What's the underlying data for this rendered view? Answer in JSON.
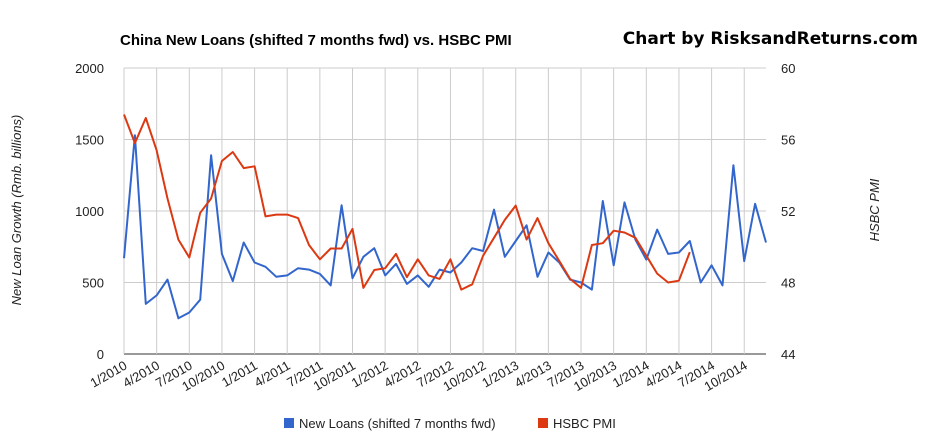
{
  "chart_data": {
    "type": "line",
    "title": "China New Loans (shifted 7 months fwd) vs. HSBC PMI",
    "watermark": "Chart by RisksandReturns.com",
    "ylabel": "New Loan Growth (Rmb. billions)",
    "y2label": "HSBC PMI",
    "ylim": [
      0,
      2000
    ],
    "y2lim": [
      44,
      60
    ],
    "yticks": [
      "0",
      "500",
      "1000",
      "1500",
      "2000"
    ],
    "y2ticks": [
      "44",
      "48",
      "52",
      "56",
      "60"
    ],
    "xlim": [
      "2010-01",
      "2014-12"
    ],
    "xticks": [
      "1/2010",
      "4/2010",
      "7/2010",
      "10/2010",
      "1/2011",
      "4/2011",
      "7/2011",
      "10/2011",
      "1/2012",
      "4/2012",
      "7/2012",
      "10/2012",
      "1/2013",
      "4/2013",
      "7/2013",
      "10/2013",
      "1/2014",
      "4/2014",
      "7/2014",
      "10/2014"
    ],
    "grid": true,
    "legend_position": "bottom",
    "series": [
      {
        "name": "New Loans (shifted 7 months fwd)",
        "color": "#3366cc",
        "axis": "left",
        "start": "2010-01",
        "values": [
          670,
          1530,
          350,
          410,
          520,
          250,
          290,
          380,
          1390,
          700,
          510,
          780,
          640,
          610,
          540,
          550,
          600,
          590,
          560,
          480,
          1040,
          530,
          680,
          740,
          550,
          630,
          490,
          550,
          470,
          590,
          570,
          640,
          740,
          720,
          1010,
          680,
          790,
          900,
          540,
          710,
          640,
          520,
          500,
          450,
          1070,
          620,
          1060,
          800,
          660,
          870,
          700,
          710,
          790,
          500,
          620,
          480,
          1320,
          650,
          1050,
          780
        ]
      },
      {
        "name": "HSBC PMI",
        "color": "#dc3912",
        "axis": "right",
        "start": "2010-01",
        "values": [
          57.4,
          55.8,
          57.2,
          55.4,
          52.7,
          50.4,
          49.4,
          51.9,
          52.7,
          54.8,
          55.3,
          54.4,
          54.5,
          51.7,
          51.8,
          51.8,
          51.6,
          50.1,
          49.3,
          49.9,
          49.9,
          51.0,
          47.7,
          48.7,
          48.8,
          49.6,
          48.3,
          49.3,
          48.4,
          48.2,
          49.3,
          47.6,
          47.9,
          49.5,
          50.5,
          51.5,
          52.3,
          50.4,
          51.6,
          50.2,
          49.2,
          48.2,
          47.7,
          50.1,
          50.2,
          50.9,
          50.8,
          50.5,
          49.5,
          48.5,
          48.0,
          48.1,
          49.7
        ]
      }
    ]
  }
}
